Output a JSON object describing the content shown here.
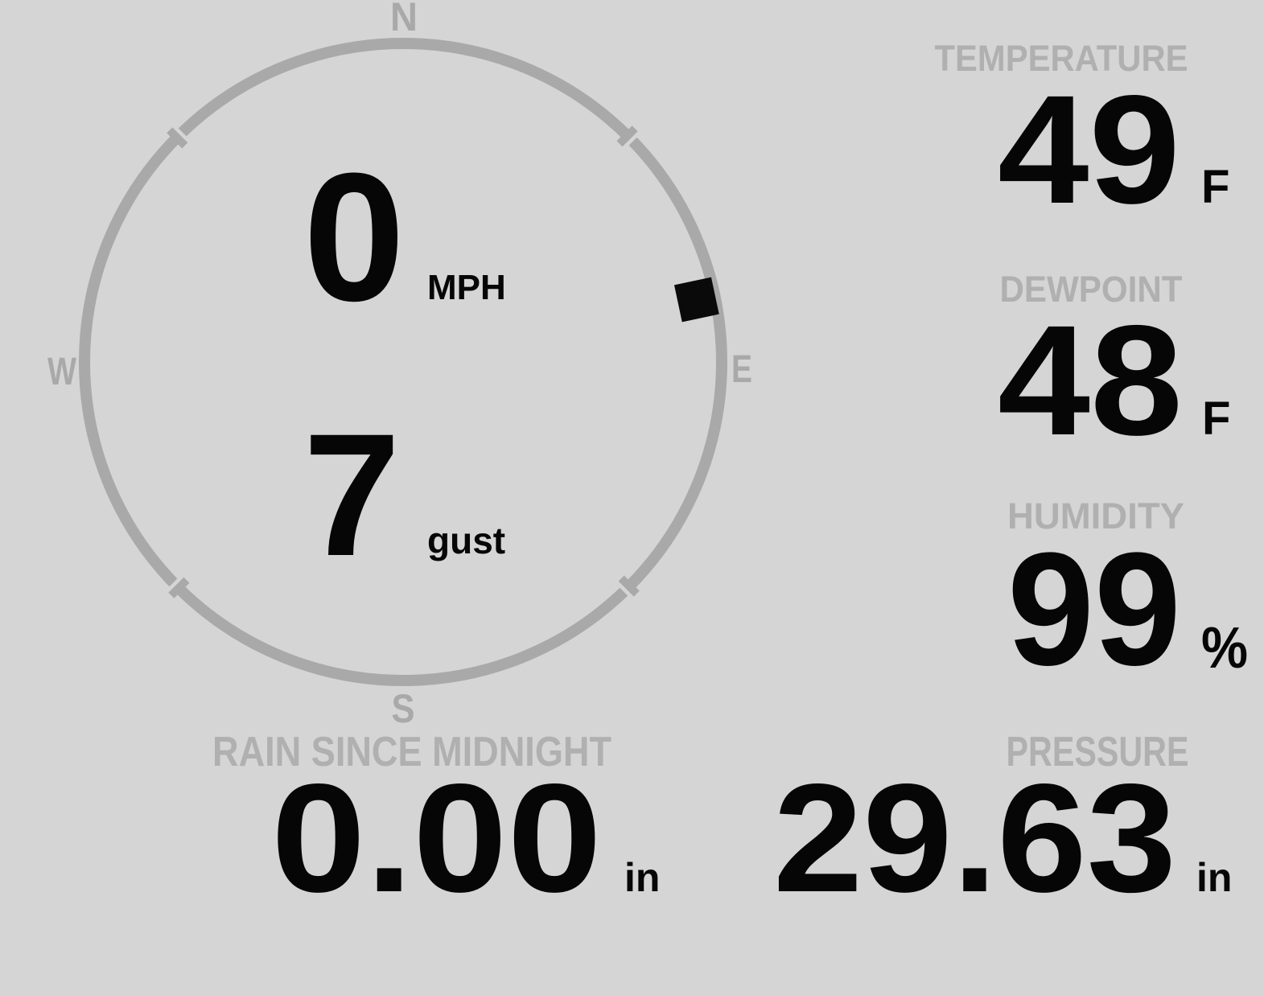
{
  "wind": {
    "speed": "0",
    "speed_unit": "MPH",
    "gust": "7",
    "gust_label": "gust",
    "direction_deg": 78,
    "compass": {
      "north": "N",
      "south": "S",
      "east": "E",
      "west": "W"
    }
  },
  "metrics": {
    "temperature": {
      "label": "TEMPERATURE",
      "value": "49",
      "unit": "F"
    },
    "dewpoint": {
      "label": "DEWPOINT",
      "value": "48",
      "unit": "F"
    },
    "humidity": {
      "label": "HUMIDITY",
      "value": "99",
      "unit": "%"
    },
    "rain": {
      "label": "RAIN SINCE MIDNIGHT",
      "value": "0.00",
      "unit": "in"
    },
    "pressure": {
      "label": "PRESSURE",
      "value": "29.63",
      "unit": "in"
    }
  },
  "colors": {
    "background": "#d4d5d4",
    "gauge_gray": "#a9a9a9",
    "label_gray": "#b0b0b0",
    "value_black": "#060606"
  }
}
